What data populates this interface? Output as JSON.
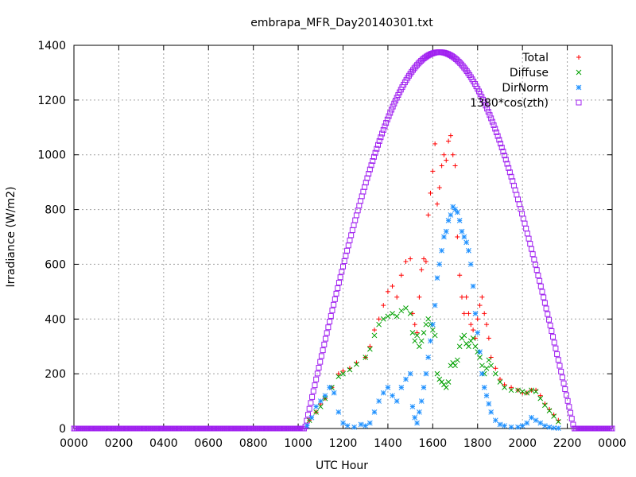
{
  "chart_data": {
    "type": "scatter",
    "title": "embrapa_MFR_Day20140301.txt",
    "xlabel": "UTC Hour",
    "ylabel": "Irradiance (W/m2)",
    "xlim": [
      0,
      2400
    ],
    "ylim": [
      0,
      1400
    ],
    "x_tick_labels": [
      "0000",
      "0200",
      "0400",
      "0600",
      "0800",
      "1000",
      "1200",
      "1400",
      "1600",
      "1800",
      "2000",
      "2200",
      "0000"
    ],
    "y_tick_labels": [
      "0",
      "200",
      "400",
      "600",
      "800",
      "1000",
      "1200",
      "1400"
    ],
    "grid": true,
    "legend_position": "top-right",
    "series": [
      {
        "name": "Total",
        "marker": "plus",
        "color": "#ff0000",
        "points": [
          [
            1050,
            30
          ],
          [
            1080,
            60
          ],
          [
            1100,
            90
          ],
          [
            1120,
            110
          ],
          [
            1150,
            150
          ],
          [
            1180,
            200
          ],
          [
            1200,
            210
          ],
          [
            1230,
            220
          ],
          [
            1260,
            240
          ],
          [
            1300,
            260
          ],
          [
            1320,
            300
          ],
          [
            1340,
            360
          ],
          [
            1360,
            400
          ],
          [
            1380,
            450
          ],
          [
            1400,
            500
          ],
          [
            1420,
            520
          ],
          [
            1440,
            480
          ],
          [
            1460,
            560
          ],
          [
            1480,
            610
          ],
          [
            1500,
            620
          ],
          [
            1510,
            420
          ],
          [
            1520,
            380
          ],
          [
            1530,
            350
          ],
          [
            1540,
            480
          ],
          [
            1550,
            580
          ],
          [
            1560,
            620
          ],
          [
            1570,
            610
          ],
          [
            1580,
            780
          ],
          [
            1590,
            860
          ],
          [
            1600,
            940
          ],
          [
            1610,
            1040
          ],
          [
            1620,
            820
          ],
          [
            1630,
            880
          ],
          [
            1640,
            960
          ],
          [
            1650,
            1000
          ],
          [
            1660,
            980
          ],
          [
            1670,
            1050
          ],
          [
            1680,
            1070
          ],
          [
            1690,
            1000
          ],
          [
            1700,
            960
          ],
          [
            1710,
            700
          ],
          [
            1720,
            560
          ],
          [
            1730,
            480
          ],
          [
            1740,
            420
          ],
          [
            1750,
            480
          ],
          [
            1760,
            420
          ],
          [
            1770,
            380
          ],
          [
            1780,
            360
          ],
          [
            1790,
            330
          ],
          [
            1800,
            400
          ],
          [
            1810,
            450
          ],
          [
            1820,
            480
          ],
          [
            1830,
            420
          ],
          [
            1840,
            380
          ],
          [
            1850,
            330
          ],
          [
            1860,
            260
          ],
          [
            1880,
            220
          ],
          [
            1900,
            180
          ],
          [
            1920,
            160
          ],
          [
            1950,
            150
          ],
          [
            1980,
            140
          ],
          [
            2000,
            130
          ],
          [
            2020,
            130
          ],
          [
            2040,
            140
          ],
          [
            2060,
            140
          ],
          [
            2080,
            120
          ],
          [
            2100,
            90
          ],
          [
            2120,
            70
          ],
          [
            2140,
            50
          ],
          [
            2160,
            30
          ]
        ]
      },
      {
        "name": "Diffuse",
        "marker": "cross",
        "color": "#00a000",
        "points": [
          [
            1050,
            30
          ],
          [
            1080,
            60
          ],
          [
            1100,
            80
          ],
          [
            1120,
            110
          ],
          [
            1150,
            150
          ],
          [
            1180,
            190
          ],
          [
            1200,
            200
          ],
          [
            1230,
            215
          ],
          [
            1260,
            235
          ],
          [
            1300,
            260
          ],
          [
            1320,
            290
          ],
          [
            1340,
            340
          ],
          [
            1360,
            380
          ],
          [
            1380,
            400
          ],
          [
            1400,
            410
          ],
          [
            1420,
            420
          ],
          [
            1440,
            410
          ],
          [
            1460,
            430
          ],
          [
            1480,
            440
          ],
          [
            1500,
            420
          ],
          [
            1510,
            350
          ],
          [
            1520,
            320
          ],
          [
            1530,
            340
          ],
          [
            1540,
            300
          ],
          [
            1550,
            320
          ],
          [
            1560,
            350
          ],
          [
            1570,
            380
          ],
          [
            1580,
            400
          ],
          [
            1590,
            380
          ],
          [
            1600,
            360
          ],
          [
            1610,
            340
          ],
          [
            1620,
            200
          ],
          [
            1630,
            180
          ],
          [
            1640,
            170
          ],
          [
            1650,
            160
          ],
          [
            1660,
            150
          ],
          [
            1670,
            170
          ],
          [
            1680,
            230
          ],
          [
            1690,
            240
          ],
          [
            1700,
            230
          ],
          [
            1710,
            250
          ],
          [
            1720,
            300
          ],
          [
            1730,
            330
          ],
          [
            1740,
            340
          ],
          [
            1750,
            310
          ],
          [
            1760,
            300
          ],
          [
            1770,
            320
          ],
          [
            1780,
            330
          ],
          [
            1790,
            300
          ],
          [
            1800,
            280
          ],
          [
            1810,
            260
          ],
          [
            1820,
            230
          ],
          [
            1830,
            200
          ],
          [
            1840,
            220
          ],
          [
            1850,
            250
          ],
          [
            1860,
            230
          ],
          [
            1880,
            200
          ],
          [
            1900,
            170
          ],
          [
            1920,
            150
          ],
          [
            1950,
            140
          ],
          [
            1980,
            140
          ],
          [
            2000,
            135
          ],
          [
            2020,
            130
          ],
          [
            2040,
            140
          ],
          [
            2060,
            135
          ],
          [
            2080,
            110
          ],
          [
            2100,
            85
          ],
          [
            2120,
            65
          ],
          [
            2140,
            45
          ],
          [
            2160,
            25
          ]
        ]
      },
      {
        "name": "DirNorm",
        "marker": "star",
        "color": "#1e90ff",
        "points": [
          [
            1040,
            10
          ],
          [
            1060,
            40
          ],
          [
            1080,
            80
          ],
          [
            1100,
            100
          ],
          [
            1120,
            120
          ],
          [
            1140,
            150
          ],
          [
            1160,
            130
          ],
          [
            1180,
            60
          ],
          [
            1200,
            20
          ],
          [
            1220,
            10
          ],
          [
            1250,
            5
          ],
          [
            1280,
            15
          ],
          [
            1300,
            10
          ],
          [
            1320,
            20
          ],
          [
            1340,
            60
          ],
          [
            1360,
            100
          ],
          [
            1380,
            130
          ],
          [
            1400,
            150
          ],
          [
            1420,
            120
          ],
          [
            1440,
            100
          ],
          [
            1460,
            150
          ],
          [
            1480,
            180
          ],
          [
            1500,
            200
          ],
          [
            1510,
            80
          ],
          [
            1520,
            40
          ],
          [
            1530,
            20
          ],
          [
            1540,
            60
          ],
          [
            1550,
            100
          ],
          [
            1560,
            150
          ],
          [
            1570,
            200
          ],
          [
            1580,
            260
          ],
          [
            1590,
            320
          ],
          [
            1600,
            380
          ],
          [
            1610,
            450
          ],
          [
            1620,
            550
          ],
          [
            1630,
            600
          ],
          [
            1640,
            650
          ],
          [
            1650,
            700
          ],
          [
            1660,
            720
          ],
          [
            1670,
            760
          ],
          [
            1680,
            780
          ],
          [
            1690,
            810
          ],
          [
            1700,
            800
          ],
          [
            1710,
            790
          ],
          [
            1720,
            760
          ],
          [
            1730,
            720
          ],
          [
            1740,
            700
          ],
          [
            1750,
            680
          ],
          [
            1760,
            650
          ],
          [
            1770,
            600
          ],
          [
            1780,
            520
          ],
          [
            1790,
            420
          ],
          [
            1800,
            350
          ],
          [
            1810,
            280
          ],
          [
            1820,
            200
          ],
          [
            1830,
            150
          ],
          [
            1840,
            120
          ],
          [
            1850,
            90
          ],
          [
            1860,
            60
          ],
          [
            1880,
            30
          ],
          [
            1900,
            15
          ],
          [
            1920,
            10
          ],
          [
            1950,
            5
          ],
          [
            1980,
            5
          ],
          [
            2000,
            10
          ],
          [
            2020,
            20
          ],
          [
            2040,
            40
          ],
          [
            2060,
            30
          ],
          [
            2080,
            20
          ],
          [
            2100,
            10
          ],
          [
            2120,
            5
          ],
          [
            2140,
            2
          ],
          [
            2160,
            1
          ]
        ]
      },
      {
        "name": "1380*cos(zth)",
        "marker": "square",
        "color": "#a020f0",
        "formula": "1380*cos(zth)",
        "peak_x": 1630,
        "peak_y": 1375,
        "sunrise_x": 1030,
        "sunset_x": 2230
      }
    ]
  }
}
